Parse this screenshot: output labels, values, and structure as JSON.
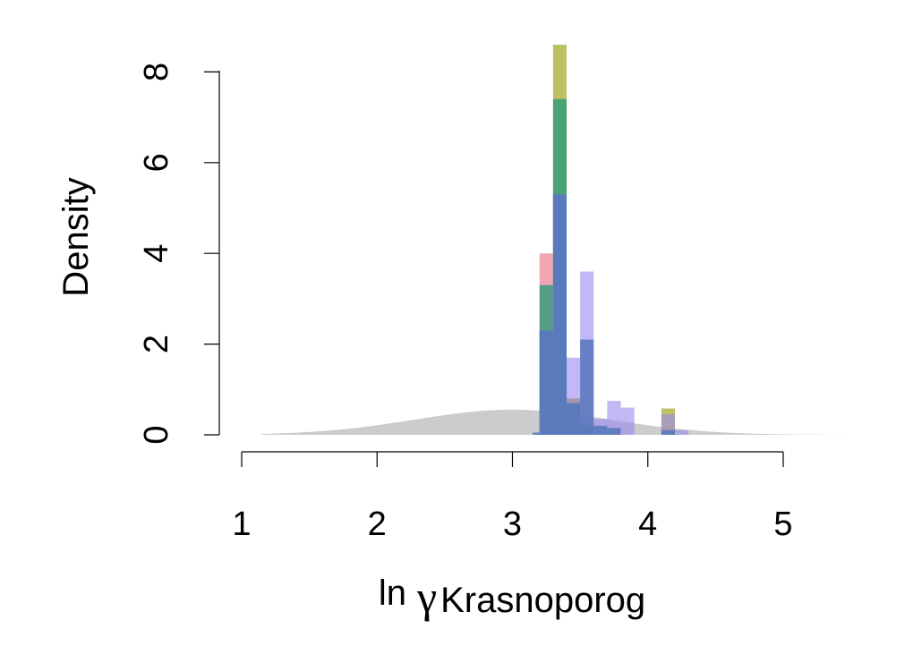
{
  "chart_data": {
    "type": "bar",
    "title": "",
    "xlabel": {
      "prefix": "ln",
      "symbol": "γ",
      "subscript": "Krasnoporog"
    },
    "ylabel": "Density",
    "xlim": [
      1,
      5.45
    ],
    "ylim": [
      0,
      8.6
    ],
    "x_ticks": [
      "1",
      "2",
      "3",
      "4",
      "5"
    ],
    "y_ticks": [
      "0",
      "2",
      "4",
      "6",
      "8"
    ],
    "grid": false,
    "legend": "none",
    "prior": {
      "name": "",
      "color": "#cccccc",
      "mean": 3.0,
      "sd": 0.72,
      "x_range": [
        1.15,
        5.45
      ]
    },
    "bin_width": 0.1,
    "series": [
      {
        "color": "#ee8899",
        "opacity": 0.75,
        "bins": [
          {
            "x0": 3.2,
            "x1": 3.3,
            "y": 4.0
          },
          {
            "x0": 3.3,
            "x1": 3.4,
            "y": 1.0
          },
          {
            "x0": 3.4,
            "x1": 3.5,
            "y": 0.8
          },
          {
            "x0": 3.5,
            "x1": 3.6,
            "y": 0.2
          }
        ]
      },
      {
        "color": "#aaaa33",
        "opacity": 0.75,
        "bins": [
          {
            "x0": 3.2,
            "x1": 3.3,
            "y": 2.3
          },
          {
            "x0": 3.3,
            "x1": 3.4,
            "y": 8.6
          },
          {
            "x0": 3.4,
            "x1": 3.5,
            "y": 0.8
          },
          {
            "x0": 3.5,
            "x1": 3.6,
            "y": 0.2
          },
          {
            "x0": 4.1,
            "x1": 4.2,
            "y": 0.58
          }
        ]
      },
      {
        "color": "#229977",
        "opacity": 0.75,
        "bins": [
          {
            "x0": 3.2,
            "x1": 3.3,
            "y": 3.3
          },
          {
            "x0": 3.3,
            "x1": 3.4,
            "y": 7.4
          },
          {
            "x0": 3.4,
            "x1": 3.5,
            "y": 0.7
          },
          {
            "x0": 3.5,
            "x1": 3.6,
            "y": 0.2
          }
        ]
      },
      {
        "color": "#9988ee",
        "opacity": 0.6,
        "bins": [
          {
            "x0": 3.2,
            "x1": 3.3,
            "y": 2.3
          },
          {
            "x0": 3.3,
            "x1": 3.4,
            "y": 5.3
          },
          {
            "x0": 3.4,
            "x1": 3.5,
            "y": 1.7
          },
          {
            "x0": 3.5,
            "x1": 3.6,
            "y": 3.6
          },
          {
            "x0": 3.6,
            "x1": 3.7,
            "y": 0.35
          },
          {
            "x0": 3.7,
            "x1": 3.8,
            "y": 0.75
          },
          {
            "x0": 3.8,
            "x1": 3.9,
            "y": 0.6
          },
          {
            "x0": 4.1,
            "x1": 4.2,
            "y": 0.45
          },
          {
            "x0": 4.2,
            "x1": 4.3,
            "y": 0.1
          }
        ]
      },
      {
        "color": "#5577bb",
        "opacity": 0.85,
        "bins": [
          {
            "x0": 3.15,
            "x1": 3.2,
            "y": 0.05
          },
          {
            "x0": 3.2,
            "x1": 3.3,
            "y": 2.3
          },
          {
            "x0": 3.3,
            "x1": 3.4,
            "y": 5.3
          },
          {
            "x0": 3.4,
            "x1": 3.5,
            "y": 0.7
          },
          {
            "x0": 3.5,
            "x1": 3.6,
            "y": 2.1
          },
          {
            "x0": 3.6,
            "x1": 3.7,
            "y": 0.2
          },
          {
            "x0": 3.7,
            "x1": 3.8,
            "y": 0.15
          },
          {
            "x0": 4.1,
            "x1": 4.2,
            "y": 0.1
          }
        ]
      }
    ]
  }
}
